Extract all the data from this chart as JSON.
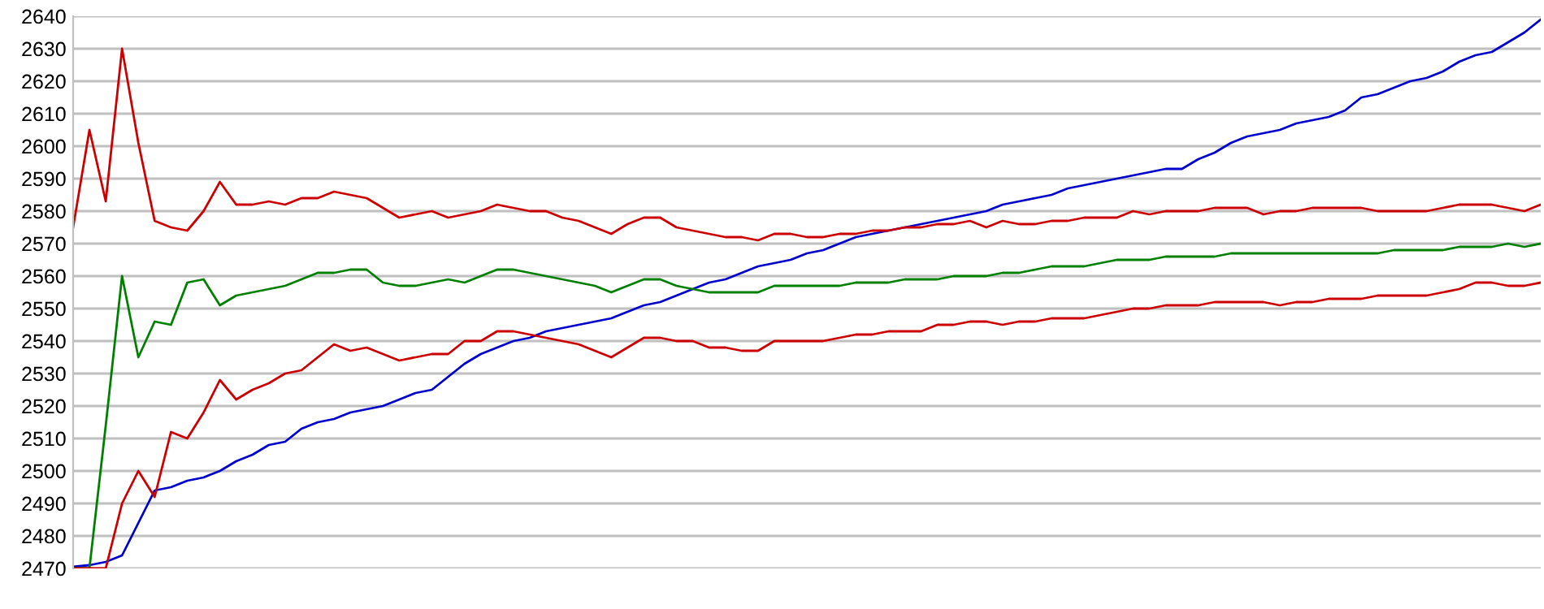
{
  "chart_data": {
    "type": "line",
    "categories": [
      null,
      null,
      null,
      null,
      null,
      null,
      null,
      null,
      null,
      null,
      null,
      null,
      null,
      null,
      null,
      null,
      null,
      null,
      null,
      null,
      null,
      null,
      null,
      null,
      null,
      null,
      null,
      null,
      null,
      null,
      null,
      null,
      null,
      null,
      null,
      null,
      null,
      null,
      null,
      null,
      null,
      null,
      null,
      null,
      null,
      null,
      null,
      null,
      null,
      null,
      null,
      null,
      null,
      null,
      null,
      null,
      null,
      null,
      null,
      null,
      null,
      null,
      null,
      null,
      null,
      null,
      null,
      null,
      null,
      null,
      null,
      null,
      null,
      null,
      null,
      null,
      null,
      null,
      null,
      null,
      null,
      null,
      null,
      null,
      null,
      null,
      null,
      null,
      null,
      null,
      null
    ],
    "series": [
      {
        "color": "#0000cc",
        "values": [
          2470.5,
          2471,
          2472,
          2474,
          2484,
          2494,
          2495,
          2497,
          2498,
          2500,
          2503,
          2505,
          2508,
          2509,
          2513,
          2515,
          2516,
          2518,
          2519,
          2520,
          2522,
          2524,
          2525,
          2529,
          2533,
          2536,
          2538,
          2540,
          2541,
          2543,
          2544,
          2545,
          2546,
          2547,
          2549,
          2551,
          2552,
          2554,
          2556,
          2558,
          2559,
          2561,
          2563,
          2564,
          2565,
          2567,
          2568,
          2570,
          2572,
          2573,
          2574,
          2575,
          2576,
          2577,
          2578,
          2579,
          2580,
          2582,
          2583,
          2584,
          2585,
          2587,
          2588,
          2589,
          2590,
          2591,
          2592,
          2593,
          2593,
          2596,
          2598,
          2601,
          2603,
          2604,
          2605,
          2607,
          2608,
          2609,
          2611,
          2615,
          2616,
          2618,
          2620,
          2621,
          2623,
          2626,
          2628,
          2629,
          2632,
          2635,
          2639
        ]
      },
      {
        "color": "#cc0000",
        "values": [
          2575,
          2605,
          2583,
          2630,
          2601,
          2577,
          2575,
          2574,
          2580,
          2589,
          2582,
          2582,
          2583,
          2582,
          2584,
          2584,
          2586,
          2585,
          2584,
          2581,
          2578,
          2579,
          2580,
          2578,
          2579,
          2580,
          2582,
          2581,
          2580,
          2580,
          2578,
          2577,
          2575,
          2573,
          2576,
          2578,
          2578,
          2575,
          2574,
          2573,
          2572,
          2572,
          2571,
          2573,
          2573,
          2572,
          2572,
          2573,
          2573,
          2574,
          2574,
          2575,
          2575,
          2576,
          2576,
          2577,
          2575,
          2577,
          2576,
          2576,
          2577,
          2577,
          2578,
          2578,
          2578,
          2580,
          2579,
          2580,
          2580,
          2580,
          2581,
          2581,
          2581,
          2579,
          2580,
          2580,
          2581,
          2581,
          2581,
          2581,
          2580,
          2580,
          2580,
          2580,
          2581,
          2582,
          2582,
          2582,
          2581,
          2580,
          2582
        ]
      },
      {
        "color": "#008000",
        "values": [
          2470,
          2470,
          2514,
          2560,
          2535,
          2546,
          2545,
          2558,
          2559,
          2551,
          2554,
          2555,
          2556,
          2557,
          2559,
          2561,
          2561,
          2562,
          2562,
          2558,
          2557,
          2557,
          2558,
          2559,
          2558,
          2560,
          2562,
          2562,
          2561,
          2560,
          2559,
          2558,
          2557,
          2555,
          2557,
          2559,
          2559,
          2557,
          2556,
          2555,
          2555,
          2555,
          2555,
          2557,
          2557,
          2557,
          2557,
          2557,
          2558,
          2558,
          2558,
          2559,
          2559,
          2559,
          2560,
          2560,
          2560,
          2561,
          2561,
          2562,
          2563,
          2563,
          2563,
          2564,
          2565,
          2565,
          2565,
          2566,
          2566,
          2566,
          2566,
          2567,
          2567,
          2567,
          2567,
          2567,
          2567,
          2567,
          2567,
          2567,
          2567,
          2568,
          2568,
          2568,
          2568,
          2569,
          2569,
          2569,
          2570,
          2569,
          2570
        ]
      },
      {
        "color": "#cc0000",
        "values": [
          2470,
          2470,
          2470,
          2490,
          2500,
          2492,
          2512,
          2510,
          2518,
          2528,
          2522,
          2525,
          2527,
          2530,
          2531,
          2535,
          2539,
          2537,
          2538,
          2536,
          2534,
          2535,
          2536,
          2536,
          2540,
          2540,
          2543,
          2543,
          2542,
          2541,
          2540,
          2539,
          2537,
          2535,
          2538,
          2541,
          2541,
          2540,
          2540,
          2538,
          2538,
          2537,
          2537,
          2540,
          2540,
          2540,
          2540,
          2541,
          2542,
          2542,
          2543,
          2543,
          2543,
          2545,
          2545,
          2546,
          2546,
          2545,
          2546,
          2546,
          2547,
          2547,
          2547,
          2548,
          2549,
          2550,
          2550,
          2551,
          2551,
          2551,
          2552,
          2552,
          2552,
          2552,
          2551,
          2552,
          2552,
          2553,
          2553,
          2553,
          2554,
          2554,
          2554,
          2554,
          2555,
          2556,
          2558,
          2558,
          2557,
          2557,
          2558
        ]
      }
    ],
    "ylim": [
      2470,
      2640
    ],
    "yticks": [
      2470,
      2480,
      2490,
      2500,
      2510,
      2520,
      2530,
      2540,
      2550,
      2560,
      2570,
      2580,
      2590,
      2600,
      2610,
      2620,
      2630,
      2640
    ],
    "grid": "y",
    "marker": "none",
    "line_style": "solid"
  }
}
